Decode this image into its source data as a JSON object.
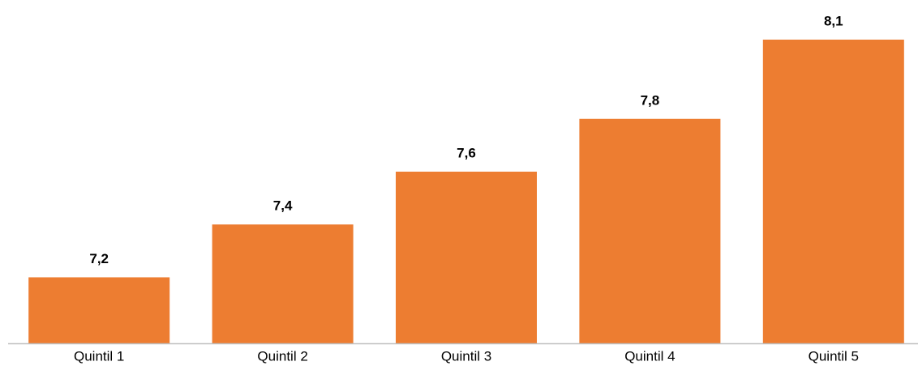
{
  "chart_data": {
    "type": "bar",
    "categories": [
      "Quintil 1",
      "Quintil 2",
      "Quintil 3",
      "Quintil 4",
      "Quintil 5"
    ],
    "values": [
      7.2,
      7.4,
      7.6,
      7.8,
      8.1
    ],
    "value_labels": [
      "7,2",
      "7,4",
      "7,6",
      "7,8",
      "8,1"
    ],
    "color": "#ed7d31",
    "ylim": [
      6.95,
      8.25
    ]
  }
}
